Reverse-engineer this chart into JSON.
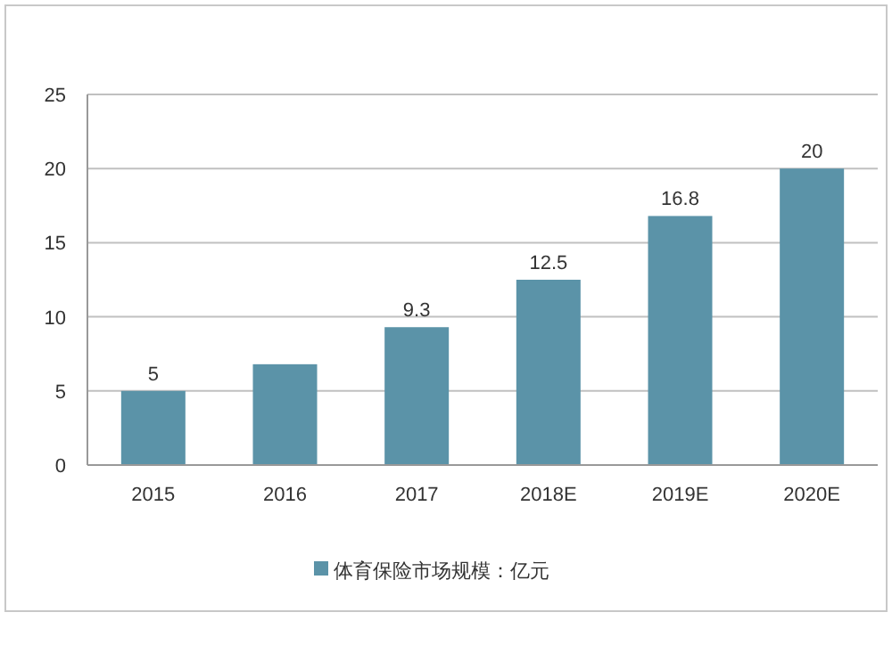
{
  "chart_data": {
    "type": "bar",
    "categories": [
      "2015",
      "2016",
      "2017",
      "2018E",
      "2019E",
      "2020E"
    ],
    "series": [
      {
        "name": "体育保险市场规模：亿元",
        "color": "#5b93a8",
        "values": [
          5,
          6.8,
          9.3,
          12.5,
          16.8,
          20
        ]
      }
    ],
    "value_labels": [
      "5",
      null,
      "9.3",
      "12.5",
      "16.8",
      "20"
    ],
    "ylim": [
      0,
      25
    ],
    "yticks": [
      0,
      5,
      10,
      15,
      20,
      25
    ],
    "grid": "y",
    "legend": "bottom"
  }
}
